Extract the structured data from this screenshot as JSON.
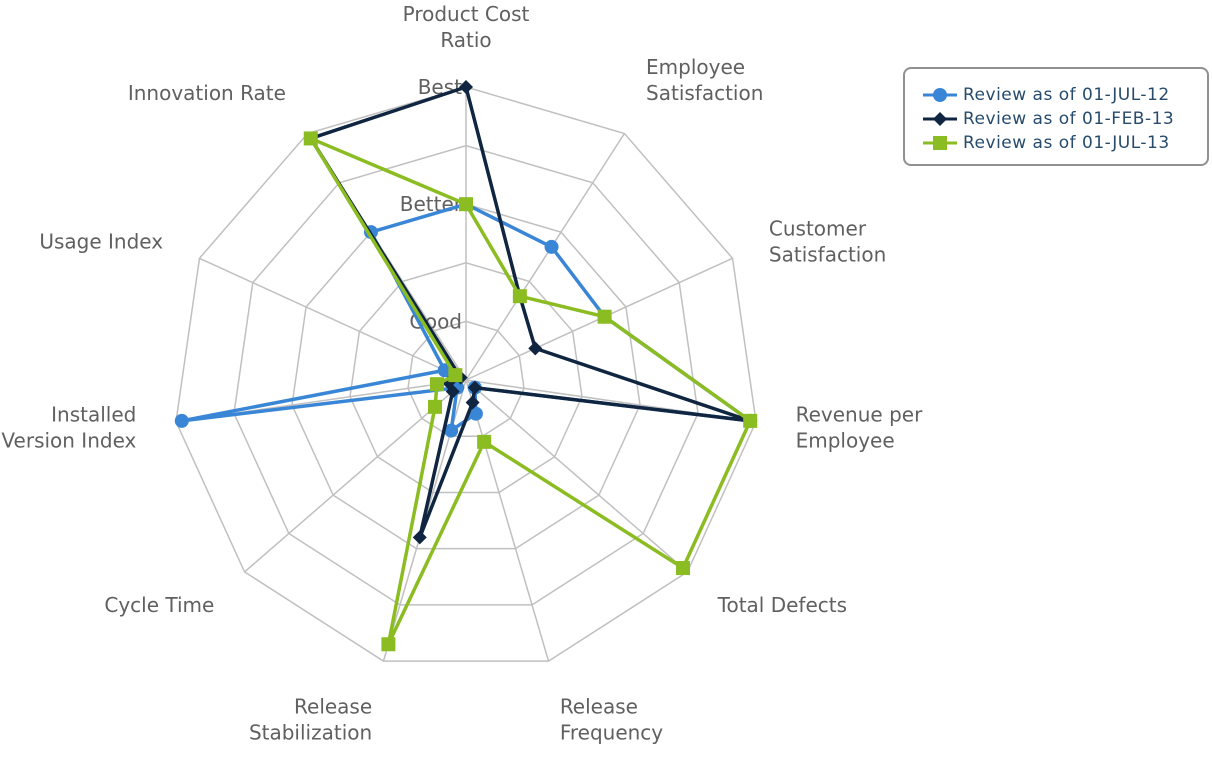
{
  "chart_data": {
    "type": "radar",
    "categories": [
      [
        "Product Cost",
        "Ratio"
      ],
      [
        "Employee",
        "Satisfaction"
      ],
      [
        "Customer",
        "Satisfaction"
      ],
      [
        "Revenue per",
        "Employee"
      ],
      [
        "Total Defects"
      ],
      [
        "Release",
        "Frequency"
      ],
      [
        "Release",
        "Stabilization"
      ],
      [
        "Cycle Time"
      ],
      [
        "Installed",
        "Version Index"
      ],
      [
        "Usage Index"
      ],
      [
        "Innovation Rate"
      ]
    ],
    "rings": [
      "Good",
      "Better",
      "Best"
    ],
    "range": [
      0,
      5
    ],
    "series": [
      {
        "name": "Review as of 01-JUL-12",
        "color": "#3a86d6",
        "marker": "circle",
        "values": [
          3.0,
          2.7,
          2.6,
          4.9,
          0.2,
          0.6,
          0.9,
          0.2,
          4.9,
          0.4,
          3.0
        ]
      },
      {
        "name": "Review as of 01-FEB-13",
        "color": "#0f2540",
        "marker": "diamond",
        "values": [
          5.0,
          1.7,
          1.3,
          4.9,
          0.2,
          0.4,
          2.8,
          0.3,
          0.3,
          0.1,
          4.9
        ]
      },
      {
        "name": "Review as of 01-JUL-13",
        "color": "#8bbc21",
        "marker": "square",
        "values": [
          3.0,
          1.7,
          2.6,
          4.9,
          4.9,
          1.1,
          4.7,
          0.7,
          0.5,
          0.2,
          4.9
        ]
      }
    ]
  }
}
